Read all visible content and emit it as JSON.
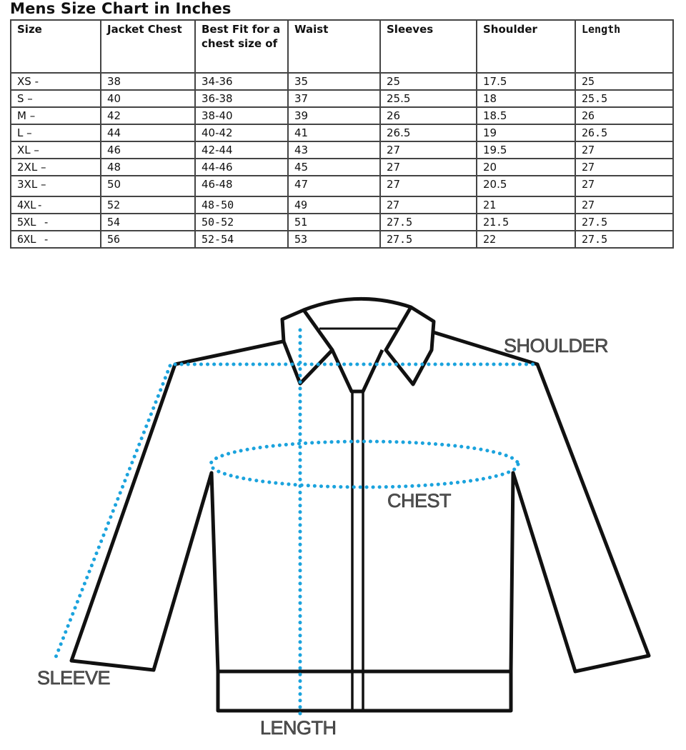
{
  "title": "Mens Size Chart in Inches",
  "table": {
    "headers": [
      "Size",
      "Jacket Chest",
      "Best Fit for a chest size of",
      "Waist",
      "Sleeves",
      "Shoulder",
      "Length"
    ],
    "rows": [
      [
        "XS -",
        "38",
        "34-36",
        "35",
        "25",
        "17.5",
        "25"
      ],
      [
        "S –",
        "40",
        "36-38",
        "37",
        "25.5",
        "18",
        "25.5"
      ],
      [
        "M –",
        "42",
        "38-40",
        "39",
        "26",
        "18.5",
        "26"
      ],
      [
        "L –",
        "44",
        "40-42",
        "41",
        "26.5",
        "19",
        "26.5"
      ],
      [
        "XL –",
        "46",
        "42-44",
        "43",
        "27",
        "19.5",
        "27"
      ],
      [
        "2XL –",
        "48",
        "44-46",
        "45",
        "27",
        "20",
        "27"
      ],
      [
        "3XL –",
        "50",
        "46-48",
        "47",
        "27",
        "20.5",
        "27"
      ],
      [
        "4XL-",
        "52",
        "48-50",
        "49",
        "27",
        "21",
        "27"
      ],
      [
        "5XL -",
        "54",
        "50-52",
        "51",
        "27.5",
        "21.5",
        "27.5"
      ],
      [
        "6XL -",
        "56",
        "52-54",
        "53",
        "27.5",
        "22",
        "27.5"
      ]
    ]
  },
  "diagram": {
    "labels": {
      "shoulder": "SHOULDER",
      "chest": "CHEST",
      "sleeve": "SLEEVE",
      "length": "LENGTH"
    },
    "measure_color": "#1ba3dd",
    "outline_color": "#111111"
  }
}
